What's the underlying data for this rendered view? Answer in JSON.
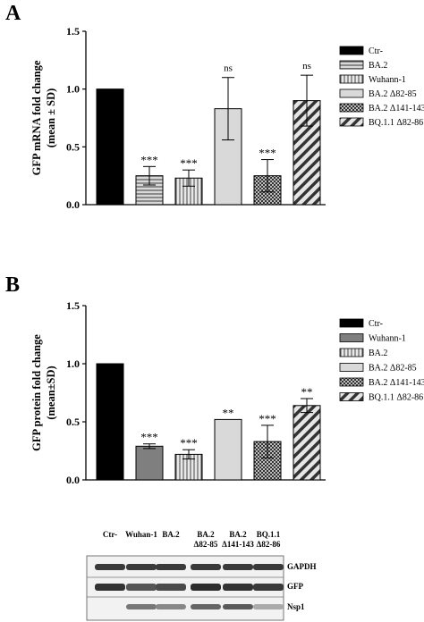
{
  "chart_data": [
    {
      "type": "bar",
      "panel": "A",
      "ylabel": [
        "GFP mRNA fold change",
        "(mean ± SD)"
      ],
      "ylim": [
        0,
        1.5
      ],
      "yticks": [
        "0.0",
        "0.5",
        "1.0",
        "1.5"
      ],
      "categories": [
        "Ctr-",
        "BA.2",
        "Wuhann-1",
        "BA.2 Δ82-85",
        "BA.2 Δ141-143",
        "BQ.1.1 Δ82-86"
      ],
      "values": [
        1.0,
        0.25,
        0.23,
        0.83,
        0.25,
        0.9
      ],
      "errors": [
        0,
        0.08,
        0.07,
        0.27,
        0.14,
        0.22
      ],
      "significance": [
        "",
        "***",
        "***",
        "ns",
        "***",
        "ns"
      ],
      "patterns": [
        "black",
        "hlines",
        "vlines",
        "light",
        "checker",
        "diag"
      ],
      "legend_position": "right"
    },
    {
      "type": "bar",
      "panel": "B",
      "ylabel": [
        "GFP protein fold change",
        "(mean±SD)"
      ],
      "ylim": [
        0,
        1.5
      ],
      "yticks": [
        "0.0",
        "0.5",
        "1.0",
        "1.5"
      ],
      "categories": [
        "Ctr-",
        "Wuhann-1",
        "BA.2",
        "BA.2 Δ82-85",
        "BA.2 Δ141-143",
        "BQ.1.1 Δ82-86"
      ],
      "values": [
        1.0,
        0.29,
        0.22,
        0.52,
        0.33,
        0.64
      ],
      "errors": [
        0,
        0.02,
        0.04,
        0,
        0.14,
        0.06
      ],
      "significance": [
        "",
        "***",
        "***",
        "**",
        "***",
        "**"
      ],
      "patterns": [
        "black",
        "gray",
        "vlines",
        "light",
        "checker",
        "diag"
      ],
      "legend_position": "right"
    }
  ],
  "blot": {
    "lanes": [
      [
        "Ctr-"
      ],
      [
        "Wuhan-1"
      ],
      [
        "BA.2"
      ],
      [
        "BA.2",
        "Δ82-85"
      ],
      [
        "BA.2",
        "Δ141-143"
      ],
      [
        "BQ.1.1",
        "Δ82-86"
      ]
    ],
    "rows": [
      "GAPDH",
      "GFP",
      "Nsp1"
    ]
  }
}
